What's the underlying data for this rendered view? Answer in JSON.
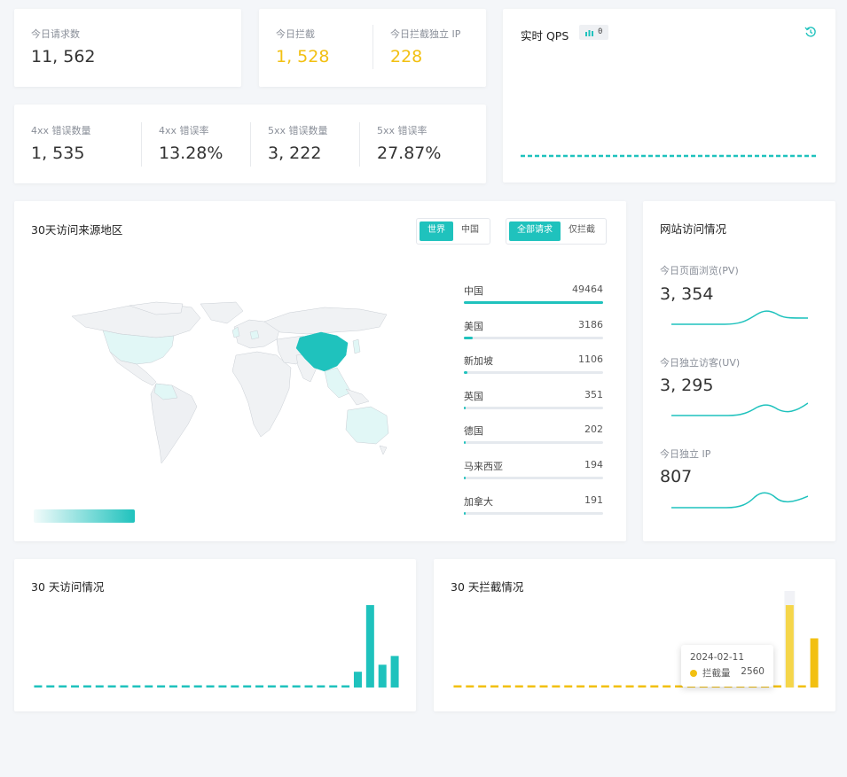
{
  "stats": {
    "requests": {
      "label": "今日请求数",
      "value": "11, 562"
    },
    "blocked": {
      "label": "今日拦截",
      "value": "1, 528"
    },
    "blocked_ip": {
      "label": "今日拦截独立 IP",
      "value": "228"
    },
    "err4xx_count": {
      "label": "4xx 错误数量",
      "value": "1, 535"
    },
    "err4xx_rate": {
      "label": "4xx 错误率",
      "value": "13.28%"
    },
    "err5xx_count": {
      "label": "5xx 错误数量",
      "value": "3, 222"
    },
    "err5xx_rate": {
      "label": "5xx 错误率",
      "value": "27.87%"
    }
  },
  "qps": {
    "title": "实时 QPS",
    "badge": "0"
  },
  "geo": {
    "title": "30天访问来源地区",
    "scope_tabs": [
      "世界",
      "中国"
    ],
    "scope_active": 0,
    "filter_tabs": [
      "全部请求",
      "仅拦截"
    ],
    "filter_active": 0,
    "ranking": [
      {
        "name": "中国",
        "value": 49464
      },
      {
        "name": "美国",
        "value": 3186
      },
      {
        "name": "新加坡",
        "value": 1106
      },
      {
        "name": "英国",
        "value": 351
      },
      {
        "name": "德国",
        "value": 202
      },
      {
        "name": "马来西亚",
        "value": 194
      },
      {
        "name": "加拿大",
        "value": 191
      }
    ]
  },
  "site": {
    "title": "网站访问情况",
    "pv": {
      "label": "今日页面浏览(PV)",
      "value": "3, 354"
    },
    "uv": {
      "label": "今日独立访客(UV)",
      "value": "3, 295"
    },
    "ip": {
      "label": "今日独立 IP",
      "value": "807"
    }
  },
  "visits": {
    "title": "30 天访问情况"
  },
  "intercepts": {
    "title": "30 天拦截情况"
  },
  "tooltip": {
    "date": "2024-02-11",
    "series": "拦截量",
    "value": "2560"
  },
  "colors": {
    "teal": "#1fc2bd",
    "yellow": "#f2c012",
    "map_light": "#e1f7f6"
  },
  "chart_data": [
    {
      "type": "bar",
      "title": "30 天访问情况",
      "values": [
        0,
        0,
        0,
        0,
        0,
        0,
        0,
        0,
        0,
        0,
        0,
        0,
        0,
        0,
        0,
        0,
        0,
        0,
        0,
        0,
        0,
        0,
        0,
        0,
        0,
        0,
        1800,
        9400,
        2600,
        3600
      ]
    },
    {
      "type": "bar",
      "title": "30 天拦截情况",
      "values": [
        0,
        0,
        0,
        0,
        0,
        0,
        0,
        0,
        0,
        0,
        0,
        0,
        0,
        0,
        0,
        0,
        0,
        0,
        0,
        0,
        0,
        0,
        0,
        0,
        0,
        0,
        0,
        2560,
        0,
        1528
      ]
    }
  ]
}
